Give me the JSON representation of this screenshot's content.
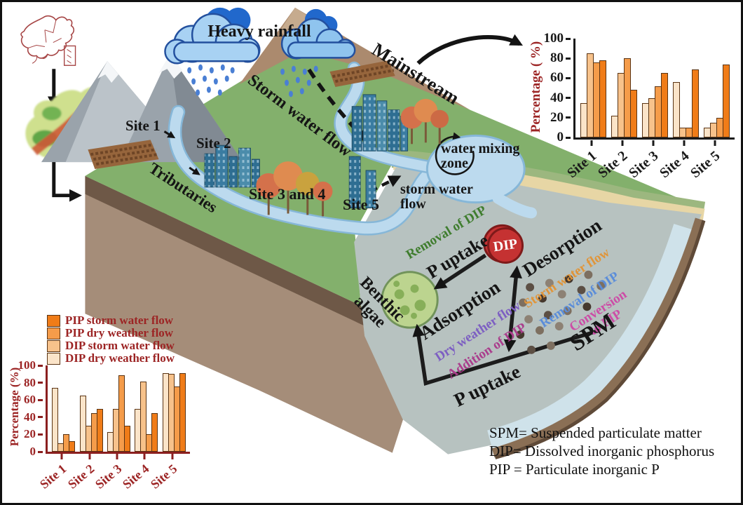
{
  "scene": {
    "heavy_rainfall": "Heavy rainfall",
    "mainstream": "Mainstream",
    "storm_water_flow": "Storm water flow",
    "site_1": "Site 1",
    "site_2": "Site 2",
    "site_3_4": "Site 3 and 4",
    "site_5": "Site 5",
    "tributaries": "Tributaries",
    "water_mixing_line1": "water mixing",
    "water_mixing_line2": "zone",
    "storm_water_small_line1": "storm water",
    "storm_water_small_line2": "flow"
  },
  "p_cycle": {
    "dip": "DIP",
    "removal_of_dip_green": "Removal of DIP",
    "p_uptake_top": "P uptake",
    "desorption": "Desorption",
    "storm_water_flow": "Storm water flow",
    "removal_of_dip_blue": "Removal of DIP",
    "conversion_line1": "Conversion",
    "conversion_line2": "to PIP",
    "adsorption": "Adsorption",
    "dry_weather_flow": "Dry weather flow",
    "addition_of_dip": "Addition of DIP",
    "benthic_line1": "Benthic",
    "benthic_line2": "algae",
    "spm": "SPM",
    "p_uptake_bottom": "P uptake"
  },
  "definitions": {
    "line1": "SPM= Suspended particulate matter",
    "line2": "DIP= Dissolved inorganic phosphorus",
    "line3": "PIP = Particulate inorganic P"
  },
  "colors": {
    "green_text": "#3f7d2e",
    "orange_text": "#e0953a",
    "blue_text": "#5b8dd9",
    "magenta_text": "#cc4da6",
    "purple_text": "#7d5fc2",
    "dark_magenta_text": "#aa3d8c",
    "maroon": "#9c2424",
    "black": "#1a1a1a",
    "dip_red": "#c53232"
  },
  "chart_data": [
    {
      "id": "mainstream_chart",
      "type": "bar",
      "title": "",
      "ylabel": "Percentage ( %)",
      "xlabel": "",
      "ylim": [
        0,
        100
      ],
      "yticks": [
        0,
        20,
        40,
        60,
        80,
        100
      ],
      "grid": false,
      "legend_position": "none",
      "show_legend": false,
      "axis_color": "#1a1a1a",
      "tick_label_color": "#1a1a1a",
      "category_color": "#1a1a1a",
      "ylabel_color": "#9c2424",
      "categories": [
        "Site 1",
        "Site 2",
        "Site 3",
        "Site 4",
        "Site 5"
      ],
      "series": [
        {
          "name": "DIP dry weather flow",
          "color": "#fbe4c9",
          "values": [
            35,
            22,
            35,
            56,
            10
          ]
        },
        {
          "name": "DIP storm water flow",
          "color": "#f7c28b",
          "values": [
            85,
            65,
            40,
            10,
            15
          ]
        },
        {
          "name": "PIP dry weather flow",
          "color": "#f59c4a",
          "values": [
            76,
            80,
            52,
            10,
            20
          ]
        },
        {
          "name": "PIP storm water flow",
          "color": "#f07c18",
          "values": [
            78,
            48,
            65,
            69,
            74
          ]
        }
      ]
    },
    {
      "id": "tributaries_chart",
      "type": "bar",
      "title": "",
      "ylabel": "Percentage (%)",
      "xlabel": "",
      "ylim": [
        0,
        100
      ],
      "yticks": [
        0,
        20,
        40,
        60,
        80,
        100
      ],
      "grid": false,
      "legend_position": "top",
      "show_legend": true,
      "legend_text_color": "#9c2424",
      "axis_color": "#8b1f1f",
      "tick_label_color": "#9c2424",
      "category_color": "#9c2424",
      "ylabel_color": "#9c2424",
      "categories": [
        "Site 1",
        "Site 2",
        "Site 3",
        "Site 4",
        "Site 5"
      ],
      "series": [
        {
          "name": "DIP dry weather flow",
          "color": "#fbe4c9",
          "values": [
            74,
            65,
            23,
            50,
            91
          ]
        },
        {
          "name": "DIP storm water flow",
          "color": "#f7c28b",
          "values": [
            10,
            30,
            50,
            81,
            90
          ]
        },
        {
          "name": "PIP dry weather flow",
          "color": "#f59c4a",
          "values": [
            20,
            45,
            89,
            20,
            76
          ]
        },
        {
          "name": "PIP storm water flow",
          "color": "#f07c18",
          "values": [
            12,
            50,
            30,
            45,
            91
          ]
        }
      ]
    }
  ]
}
